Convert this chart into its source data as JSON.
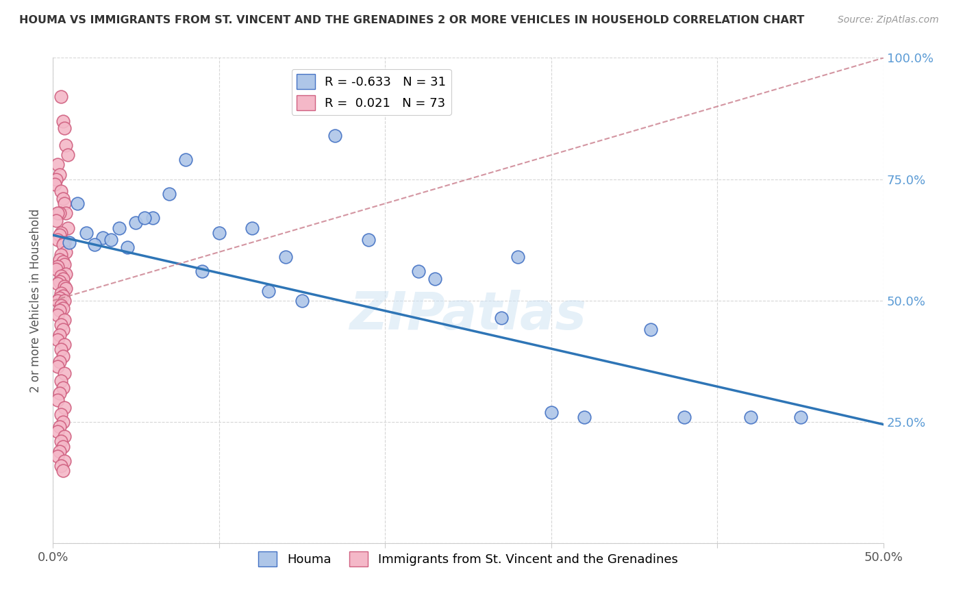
{
  "title": "HOUMA VS IMMIGRANTS FROM ST. VINCENT AND THE GRENADINES 2 OR MORE VEHICLES IN HOUSEHOLD CORRELATION CHART",
  "source": "Source: ZipAtlas.com",
  "ylabel": "2 or more Vehicles in Household",
  "xlabel": "",
  "xlim": [
    0.0,
    0.5
  ],
  "ylim": [
    0.0,
    1.0
  ],
  "xticks": [
    0.0,
    0.1,
    0.2,
    0.3,
    0.4,
    0.5
  ],
  "yticks": [
    0.0,
    0.25,
    0.5,
    0.75,
    1.0
  ],
  "ytick_labels_right": [
    "",
    "25.0%",
    "50.0%",
    "75.0%",
    "100.0%"
  ],
  "xtick_labels": [
    "0.0%",
    "",
    "",
    "",
    "",
    "50.0%"
  ],
  "houma_color": "#aec6e8",
  "houma_edge_color": "#4472c4",
  "immigrants_color": "#f4b8c8",
  "immigrants_edge_color": "#d06080",
  "houma_R": -0.633,
  "houma_N": 31,
  "immigrants_R": 0.021,
  "immigrants_N": 73,
  "houma_line_color": "#2e75b6",
  "immigrants_line_color": "#c97b8a",
  "watermark": "ZIPatlas",
  "houma_line_x0": 0.0,
  "houma_line_y0": 0.635,
  "houma_line_x1": 0.5,
  "houma_line_y1": 0.245,
  "immigrants_line_x0": 0.0,
  "immigrants_line_y0": 0.5,
  "immigrants_line_x1": 0.5,
  "immigrants_line_y1": 1.0,
  "houma_points_x": [
    0.02,
    0.05,
    0.01,
    0.03,
    0.04,
    0.06,
    0.035,
    0.025,
    0.07,
    0.08,
    0.09,
    0.17,
    0.22,
    0.12,
    0.14,
    0.13,
    0.15,
    0.19,
    0.23,
    0.27,
    0.3,
    0.32,
    0.42,
    0.45,
    0.38,
    0.36,
    0.28,
    0.045,
    0.055,
    0.015,
    0.1
  ],
  "houma_points_y": [
    0.64,
    0.66,
    0.62,
    0.63,
    0.65,
    0.67,
    0.625,
    0.615,
    0.72,
    0.79,
    0.56,
    0.84,
    0.56,
    0.65,
    0.59,
    0.52,
    0.5,
    0.625,
    0.545,
    0.465,
    0.27,
    0.26,
    0.26,
    0.26,
    0.26,
    0.44,
    0.59,
    0.61,
    0.67,
    0.7,
    0.64
  ],
  "immigrants_points_x": [
    0.005,
    0.006,
    0.007,
    0.008,
    0.009,
    0.003,
    0.004,
    0.002,
    0.001,
    0.005,
    0.006,
    0.007,
    0.008,
    0.004,
    0.003,
    0.002,
    0.009,
    0.005,
    0.004,
    0.003,
    0.007,
    0.006,
    0.008,
    0.005,
    0.004,
    0.006,
    0.007,
    0.003,
    0.002,
    0.008,
    0.005,
    0.006,
    0.004,
    0.003,
    0.007,
    0.008,
    0.005,
    0.006,
    0.004,
    0.003,
    0.007,
    0.005,
    0.006,
    0.004,
    0.003,
    0.007,
    0.005,
    0.006,
    0.004,
    0.003,
    0.007,
    0.005,
    0.006,
    0.004,
    0.003,
    0.007,
    0.005,
    0.006,
    0.004,
    0.003,
    0.007,
    0.005,
    0.006,
    0.004,
    0.003,
    0.007,
    0.005,
    0.006,
    0.004,
    0.003,
    0.007,
    0.005,
    0.006
  ],
  "immigrants_points_y": [
    0.92,
    0.87,
    0.855,
    0.82,
    0.8,
    0.78,
    0.76,
    0.75,
    0.74,
    0.725,
    0.71,
    0.7,
    0.68,
    0.68,
    0.68,
    0.665,
    0.65,
    0.64,
    0.635,
    0.625,
    0.62,
    0.615,
    0.6,
    0.595,
    0.585,
    0.58,
    0.575,
    0.57,
    0.565,
    0.555,
    0.55,
    0.545,
    0.54,
    0.535,
    0.53,
    0.525,
    0.515,
    0.51,
    0.505,
    0.5,
    0.5,
    0.49,
    0.485,
    0.48,
    0.47,
    0.46,
    0.45,
    0.44,
    0.43,
    0.42,
    0.41,
    0.4,
    0.385,
    0.375,
    0.365,
    0.35,
    0.335,
    0.32,
    0.31,
    0.295,
    0.28,
    0.265,
    0.25,
    0.24,
    0.23,
    0.22,
    0.21,
    0.2,
    0.19,
    0.18,
    0.17,
    0.16,
    0.15
  ]
}
